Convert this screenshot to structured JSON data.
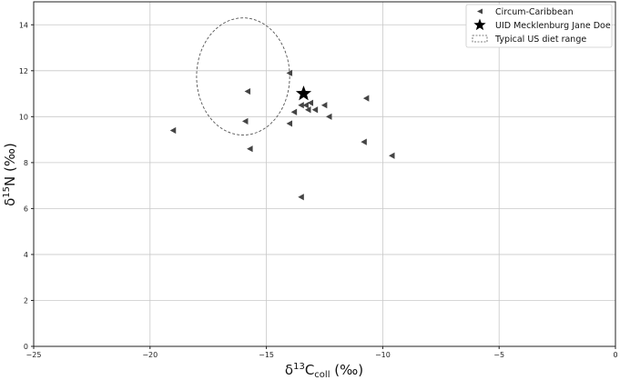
{
  "chart_data": {
    "type": "scatter",
    "xlabel": "δ13Ccoll (‰)",
    "xlabel_parts": {
      "delta": "δ",
      "sup": "13",
      "base": "C",
      "sub": "coll",
      "unit": " (‰)"
    },
    "ylabel": "δ15N (‰)",
    "ylabel_parts": {
      "delta": "δ",
      "sup": "15",
      "base": "N",
      "unit": " (‰)"
    },
    "xlim": [
      -25,
      0
    ],
    "ylim": [
      0,
      15
    ],
    "xticks": [
      -25,
      -20,
      -15,
      -10,
      -5,
      0
    ],
    "xtick_labels": [
      "−25",
      "−20",
      "−15",
      "−10",
      "−5",
      "0"
    ],
    "yticks": [
      0,
      2,
      4,
      6,
      8,
      10,
      12,
      14
    ],
    "ytick_labels": [
      "0",
      "2",
      "4",
      "6",
      "8",
      "10",
      "12",
      "14"
    ],
    "grid": true,
    "legend": {
      "position": "top-right"
    },
    "series": [
      {
        "name": "Circum-Caribbean",
        "marker": "triangle-left",
        "color": "#444444",
        "points": [
          {
            "x": -19.0,
            "y": 9.4
          },
          {
            "x": -15.8,
            "y": 11.1
          },
          {
            "x": -15.9,
            "y": 9.8
          },
          {
            "x": -15.7,
            "y": 8.6
          },
          {
            "x": -14.0,
            "y": 11.9
          },
          {
            "x": -14.0,
            "y": 9.7
          },
          {
            "x": -13.8,
            "y": 10.2
          },
          {
            "x": -13.5,
            "y": 10.5
          },
          {
            "x": -13.3,
            "y": 10.5
          },
          {
            "x": -13.1,
            "y": 10.6
          },
          {
            "x": -13.2,
            "y": 10.3
          },
          {
            "x": -12.9,
            "y": 10.3
          },
          {
            "x": -12.5,
            "y": 10.5
          },
          {
            "x": -12.3,
            "y": 10.0
          },
          {
            "x": -10.7,
            "y": 10.8
          },
          {
            "x": -10.8,
            "y": 8.9
          },
          {
            "x": -9.6,
            "y": 8.3
          },
          {
            "x": -13.5,
            "y": 6.5
          }
        ]
      },
      {
        "name": "UID Mecklenburg Jane Doe",
        "marker": "star",
        "color": "#000000",
        "points": [
          {
            "x": -13.4,
            "y": 11.0
          }
        ]
      },
      {
        "name": "Typical US diet range",
        "marker": "ellipse-dashed",
        "color": "#555555",
        "ellipse": {
          "cx": -16.0,
          "cy": 11.75,
          "rx": 2.0,
          "ry": 2.55
        }
      }
    ]
  }
}
